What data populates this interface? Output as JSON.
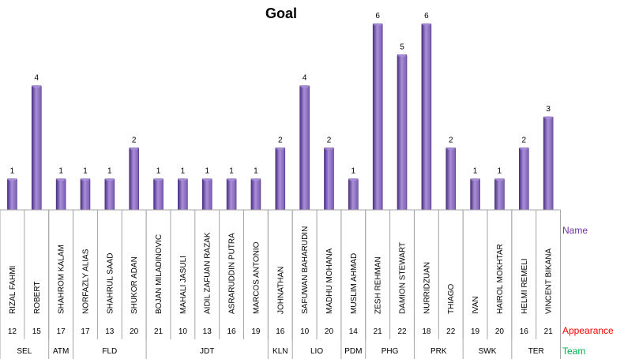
{
  "chart_data": {
    "type": "bar",
    "title": "Goal",
    "players": [
      {
        "name": "RIZAL FAHMI",
        "goals": 1,
        "appearance": 12
      },
      {
        "name": "ROBERT",
        "goals": 4,
        "appearance": 15
      },
      {
        "name": "SHAHROM KALAM",
        "goals": 1,
        "appearance": 17
      },
      {
        "name": "NORFAZLY ALIAS",
        "goals": 1,
        "appearance": 17
      },
      {
        "name": "SHAHRUL SAAD",
        "goals": 1,
        "appearance": 13
      },
      {
        "name": "SHUKOR ADAN",
        "goals": 2,
        "appearance": 20
      },
      {
        "name": "BOJAN MILADINOVIC",
        "goals": 1,
        "appearance": 21
      },
      {
        "name": "MAHALI JASULI",
        "goals": 1,
        "appearance": 10
      },
      {
        "name": "AIDIL ZAFUAN RAZAK",
        "goals": 1,
        "appearance": 13
      },
      {
        "name": "ASRARUDDIN PUTRA",
        "goals": 1,
        "appearance": 16
      },
      {
        "name": "MARCOS ANTONIO",
        "goals": 1,
        "appearance": 19
      },
      {
        "name": "JOHNATHAN",
        "goals": 2,
        "appearance": 16
      },
      {
        "name": "SAFUWAN BAHARUDIN",
        "goals": 4,
        "appearance": 10
      },
      {
        "name": "MADHU MOHANA",
        "goals": 2,
        "appearance": 20
      },
      {
        "name": "MUSLIM AHMAD",
        "goals": 1,
        "appearance": 14
      },
      {
        "name": "ZESH REHMAN",
        "goals": 6,
        "appearance": 21
      },
      {
        "name": "DAMION STEWART",
        "goals": 5,
        "appearance": 22
      },
      {
        "name": "NURRIDZUAN",
        "goals": 6,
        "appearance": 18
      },
      {
        "name": "THIAGO",
        "goals": 2,
        "appearance": 22
      },
      {
        "name": "IVAN",
        "goals": 1,
        "appearance": 19
      },
      {
        "name": "HAIROL MOKHTAR",
        "goals": 1,
        "appearance": 20
      },
      {
        "name": "HELMI REMELI",
        "goals": 2,
        "appearance": 16
      },
      {
        "name": "VINCENT BIKANA",
        "goals": 3,
        "appearance": 21
      }
    ],
    "teams": [
      {
        "label": "SEL",
        "count": 2
      },
      {
        "label": "ATM",
        "count": 1
      },
      {
        "label": "FLD",
        "count": 3
      },
      {
        "label": "JDT",
        "count": 5
      },
      {
        "label": "KLN",
        "count": 1
      },
      {
        "label": "LIO",
        "count": 2
      },
      {
        "label": "PDM",
        "count": 1
      },
      {
        "label": "PHG",
        "count": 2
      },
      {
        "label": "PRK",
        "count": 2
      },
      {
        "label": "SWK",
        "count": 2
      },
      {
        "label": "TER",
        "count": 2
      }
    ],
    "ylim": [
      0,
      6
    ],
    "row_labels": {
      "name": "Name",
      "appearance": "Appearance",
      "team": "Team"
    },
    "colors": {
      "bar": "#7a5bb0",
      "bar_dark": "#4b2f82",
      "bar_light": "#a98fd8",
      "name_label": "#7030a0",
      "appearance_label": "#ff0000",
      "team_label": "#00b050"
    }
  }
}
